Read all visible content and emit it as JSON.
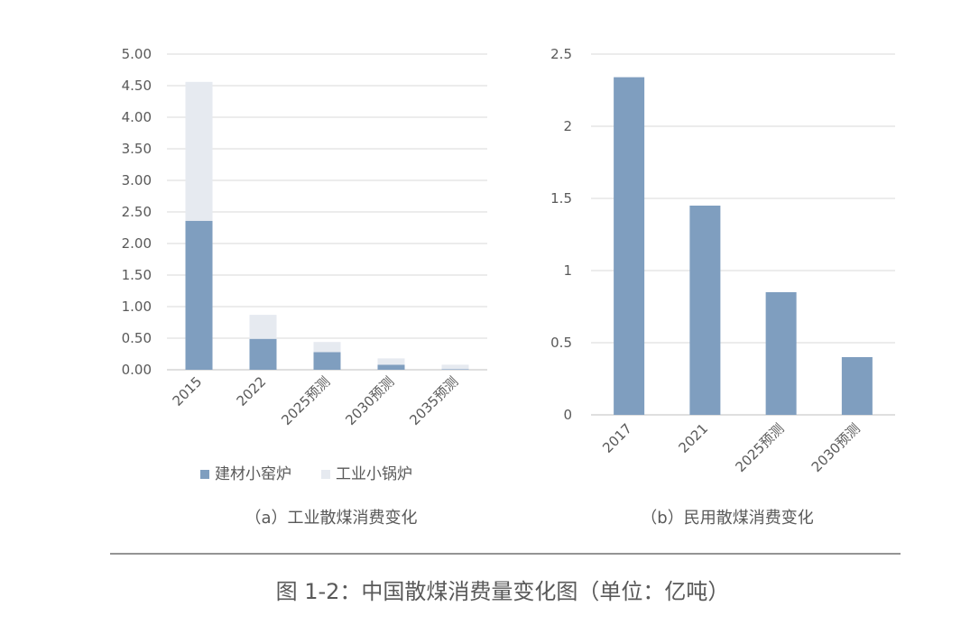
{
  "chart_data": [
    {
      "type": "bar",
      "stacked": true,
      "subtitle": "（a）工业散煤消费变化",
      "categories": [
        "2015",
        "2022",
        "2025预测",
        "2030预测",
        "2035预测"
      ],
      "series": [
        {
          "name": "建材小窑炉",
          "color": "#7f9ebf",
          "values": [
            2.36,
            0.49,
            0.28,
            0.08,
            0.01
          ]
        },
        {
          "name": "工业小锅炉",
          "color": "#e6eaf0",
          "values": [
            2.2,
            0.38,
            0.16,
            0.1,
            0.07
          ]
        }
      ],
      "ylim": [
        0,
        5
      ],
      "yticks": [
        "0.00",
        "0.50",
        "1.00",
        "1.50",
        "2.00",
        "2.50",
        "3.00",
        "3.50",
        "4.00",
        "4.50",
        "5.00"
      ],
      "grid": true,
      "legend_position": "bottom"
    },
    {
      "type": "bar",
      "subtitle": "（b）民用散煤消费变化",
      "categories": [
        "2017",
        "2021",
        "2025预测",
        "2030预测"
      ],
      "series": [
        {
          "color": "#7f9ebf",
          "values": [
            2.34,
            1.45,
            0.85,
            0.4
          ]
        }
      ],
      "ylim": [
        0,
        2.5
      ],
      "yticks": [
        "0",
        "0.5",
        "1",
        "1.5",
        "2",
        "2.5"
      ],
      "grid": true
    }
  ],
  "caption": "图 1-2：中国散煤消费量变化图（单位：亿吨）"
}
